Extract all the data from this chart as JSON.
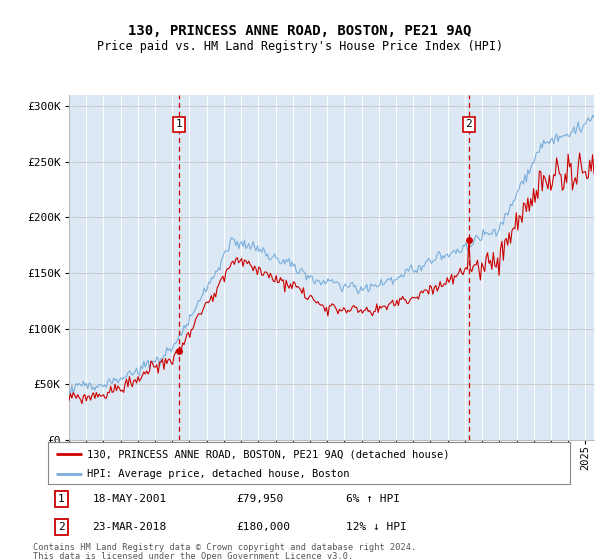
{
  "title": "130, PRINCESS ANNE ROAD, BOSTON, PE21 9AQ",
  "subtitle": "Price paid vs. HM Land Registry's House Price Index (HPI)",
  "legend_line1": "130, PRINCESS ANNE ROAD, BOSTON, PE21 9AQ (detached house)",
  "legend_line2": "HPI: Average price, detached house, Boston",
  "annotation1_date": "18-MAY-2001",
  "annotation1_price": "£79,950",
  "annotation1_hpi": "6% ↑ HPI",
  "annotation1_year": 2001.38,
  "annotation1_value": 79950,
  "annotation2_date": "23-MAR-2018",
  "annotation2_price": "£180,000",
  "annotation2_hpi": "12% ↓ HPI",
  "annotation2_year": 2018.22,
  "annotation2_value": 180000,
  "footer1": "Contains HM Land Registry data © Crown copyright and database right 2024.",
  "footer2": "This data is licensed under the Open Government Licence v3.0.",
  "line_color_red": "#cc0000",
  "line_color_blue": "#7aaddb",
  "bg_color": "#dce9f5",
  "ylim_min": 0,
  "ylim_max": 310000,
  "xlim_min": 1995.0,
  "xlim_max": 2025.5
}
